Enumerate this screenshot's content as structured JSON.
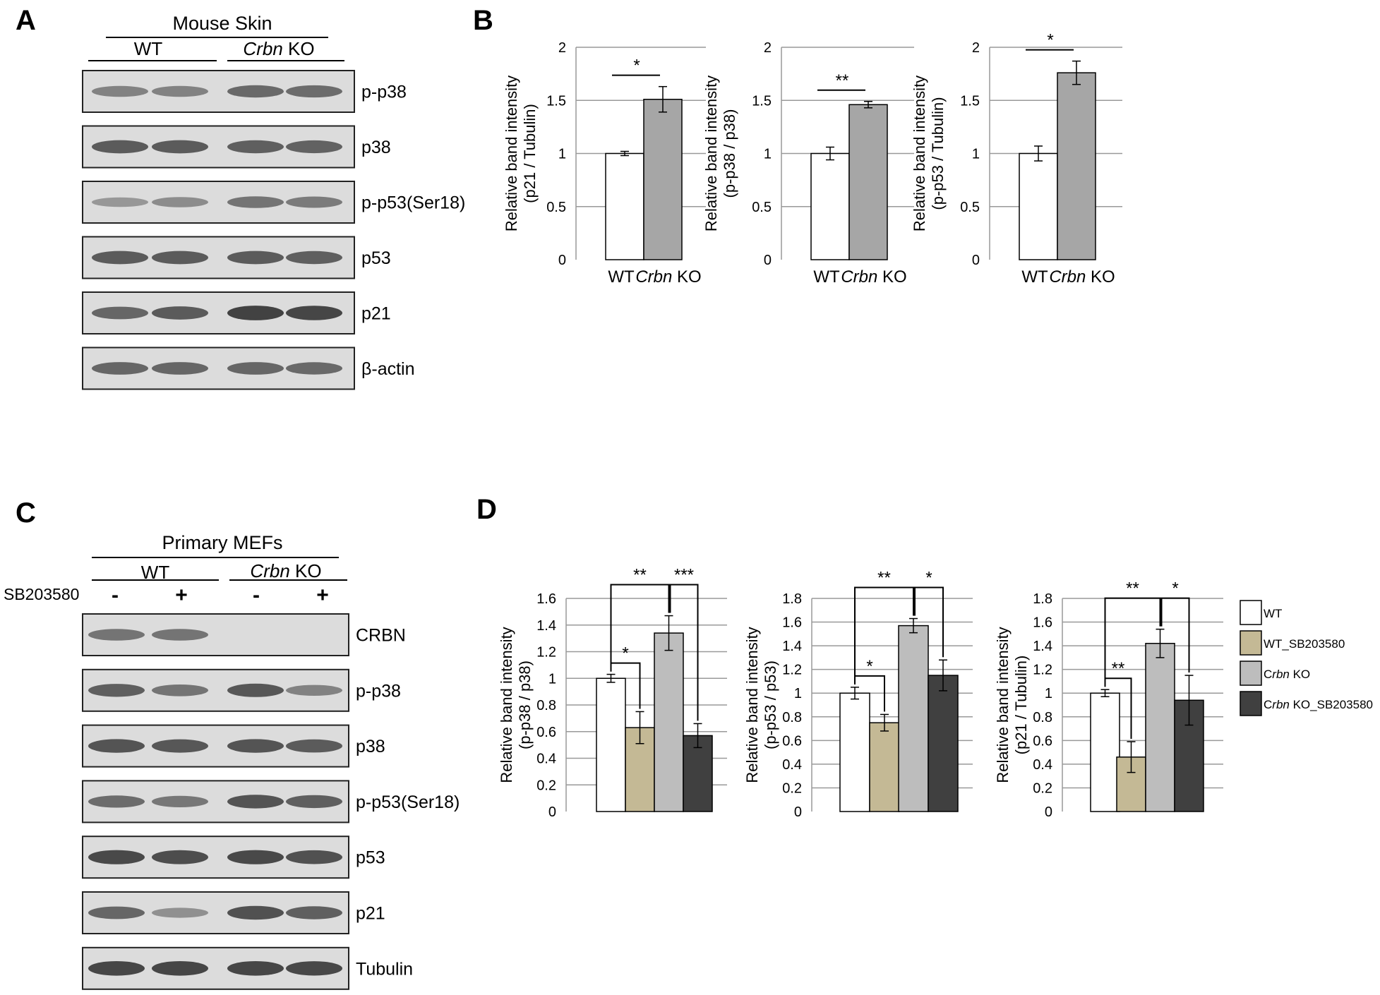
{
  "panels": {
    "A": {
      "letter": "A",
      "title": "Mouse Skin",
      "groups": [
        {
          "label": "WT",
          "italic": "",
          "suffix": ""
        },
        {
          "label": "",
          "italic": "Crbn",
          "suffix": " KO"
        }
      ],
      "blots": [
        {
          "label": "p-p38",
          "intensity": [
            0.45,
            0.45,
            0.62,
            0.6
          ]
        },
        {
          "label": "p38",
          "intensity": [
            0.72,
            0.72,
            0.7,
            0.68
          ]
        },
        {
          "label": "p-p53(Ser18)",
          "intensity": [
            0.3,
            0.38,
            0.55,
            0.5
          ]
        },
        {
          "label": "p53",
          "intensity": [
            0.72,
            0.72,
            0.72,
            0.7
          ]
        },
        {
          "label": "p21",
          "intensity": [
            0.65,
            0.72,
            0.9,
            0.88
          ]
        },
        {
          "label": "β-actin",
          "intensity": [
            0.65,
            0.65,
            0.65,
            0.62
          ]
        }
      ]
    },
    "B": {
      "letter": "B"
    },
    "C": {
      "letter": "C",
      "title": "Primary MEFs",
      "treatment_label": "SB203580",
      "treatment_signs": [
        "-",
        "+",
        "-",
        "+"
      ],
      "groups": [
        {
          "label": "WT",
          "italic": "",
          "suffix": ""
        },
        {
          "label": "",
          "italic": "Crbn",
          "suffix": " KO"
        }
      ],
      "blots": [
        {
          "label": "CRBN",
          "intensity": [
            0.55,
            0.55,
            0.0,
            0.0
          ]
        },
        {
          "label": "p-p38",
          "intensity": [
            0.7,
            0.55,
            0.75,
            0.45
          ]
        },
        {
          "label": "p38",
          "intensity": [
            0.78,
            0.75,
            0.78,
            0.72
          ]
        },
        {
          "label": "p-p53(Ser18)",
          "intensity": [
            0.6,
            0.52,
            0.78,
            0.7
          ]
        },
        {
          "label": "p53",
          "intensity": [
            0.85,
            0.82,
            0.85,
            0.8
          ]
        },
        {
          "label": "p21",
          "intensity": [
            0.65,
            0.35,
            0.8,
            0.7
          ]
        },
        {
          "label": "Tubulin",
          "intensity": [
            0.88,
            0.88,
            0.88,
            0.86
          ]
        }
      ]
    },
    "D": {
      "letter": "D",
      "legend": [
        {
          "name": "WT",
          "italic": "",
          "rest": "WT",
          "color": "#ffffff"
        },
        {
          "name": "WT_SB203580",
          "italic": "",
          "rest": "WT_SB203580",
          "color": "#c4b995"
        },
        {
          "name": "Crbn KO",
          "italic": "Crbn",
          "rest": " KO",
          "color": "#bdbdbd"
        },
        {
          "name": "Crbn KO_SB203580",
          "italic": "Crbn",
          "rest": " KO_SB203580",
          "color": "#404040"
        }
      ]
    }
  },
  "chart_data": [
    {
      "type": "bar",
      "panel": "B",
      "ylabel_lines": [
        "Relative band intensity",
        "(p21 / Tubulin)"
      ],
      "categories": [
        "WT",
        "Crbn KO"
      ],
      "values": [
        1.0,
        1.51
      ],
      "errors": [
        0.02,
        0.12
      ],
      "colors": [
        "#ffffff",
        "#a6a6a6"
      ],
      "ylim": [
        0,
        2
      ],
      "ticks": [
        0,
        0.5,
        1,
        1.5,
        2
      ],
      "tick_labels": [
        "0",
        "0.5",
        "1",
        "1.5",
        "2"
      ],
      "xlabels": [
        {
          "plain": "WT",
          "italic": ""
        },
        {
          "plain": " KO",
          "italic": "Crbn"
        }
      ],
      "sig": [
        {
          "from": 0,
          "to": 1,
          "text": "*",
          "kind": "line"
        }
      ]
    },
    {
      "type": "bar",
      "panel": "B",
      "ylabel_lines": [
        "Relative band intensity",
        "(p-p38 / p38)"
      ],
      "categories": [
        "WT",
        "Crbn KO"
      ],
      "values": [
        1.0,
        1.46
      ],
      "errors": [
        0.06,
        0.03
      ],
      "colors": [
        "#ffffff",
        "#a6a6a6"
      ],
      "ylim": [
        0,
        2
      ],
      "ticks": [
        0,
        0.5,
        1,
        1.5,
        2
      ],
      "tick_labels": [
        "0",
        "0.5",
        "1",
        "1.5",
        "2"
      ],
      "xlabels": [
        {
          "plain": "WT",
          "italic": ""
        },
        {
          "plain": " KO",
          "italic": "Crbn"
        }
      ],
      "sig": [
        {
          "from": 0,
          "to": 1,
          "text": "**",
          "kind": "line"
        }
      ]
    },
    {
      "type": "bar",
      "panel": "B",
      "ylabel_lines": [
        "Relative band intensity",
        "(p-p53 / Tubulin)"
      ],
      "categories": [
        "WT",
        "Crbn KO"
      ],
      "values": [
        1.0,
        1.76
      ],
      "errors": [
        0.07,
        0.11
      ],
      "colors": [
        "#ffffff",
        "#a6a6a6"
      ],
      "ylim": [
        0,
        2
      ],
      "ticks": [
        0,
        0.5,
        1,
        1.5,
        2
      ],
      "tick_labels": [
        "0",
        "0.5",
        "1",
        "1.5",
        "2"
      ],
      "xlabels": [
        {
          "plain": "WT",
          "italic": ""
        },
        {
          "plain": " KO",
          "italic": "Crbn"
        }
      ],
      "sig": [
        {
          "from": 0,
          "to": 1,
          "text": "*",
          "kind": "line"
        }
      ]
    },
    {
      "type": "bar",
      "panel": "D",
      "ylabel_lines": [
        "Relative band intensity",
        "(p-p38 / p38)"
      ],
      "categories": [
        "WT",
        "WT_SB203580",
        "Crbn KO",
        "Crbn KO_SB203580"
      ],
      "values": [
        1.0,
        0.63,
        1.34,
        0.57
      ],
      "errors": [
        0.03,
        0.12,
        0.13,
        0.09
      ],
      "colors": [
        "#ffffff",
        "#c4b995",
        "#bdbdbd",
        "#404040"
      ],
      "ylim": [
        0,
        1.6
      ],
      "ticks": [
        0,
        0.2,
        0.4,
        0.6,
        0.8,
        1,
        1.2,
        1.4,
        1.6
      ],
      "tick_labels": [
        "0",
        "0.2",
        "0.4",
        "0.6",
        "0.8",
        "1",
        "1.2",
        "1.4",
        "1.6"
      ],
      "sig": [
        {
          "from": 0,
          "to": 1,
          "text": "*",
          "kind": "bracket"
        },
        {
          "from": 0,
          "to": 2,
          "text": "**",
          "kind": "bracket"
        },
        {
          "from": 2,
          "to": 3,
          "text": "***",
          "kind": "bracket"
        }
      ]
    },
    {
      "type": "bar",
      "panel": "D",
      "ylabel_lines": [
        "Relative band intensity",
        "(p-p53 / p53)"
      ],
      "categories": [
        "WT",
        "WT_SB203580",
        "Crbn KO",
        "Crbn KO_SB203580"
      ],
      "values": [
        1.0,
        0.75,
        1.57,
        1.15
      ],
      "errors": [
        0.05,
        0.07,
        0.06,
        0.13
      ],
      "colors": [
        "#ffffff",
        "#c4b995",
        "#bdbdbd",
        "#404040"
      ],
      "ylim": [
        0,
        1.8
      ],
      "ticks": [
        0,
        0.2,
        0.4,
        0.6,
        0.8,
        1,
        1.2,
        1.4,
        1.6,
        1.8
      ],
      "tick_labels": [
        "0",
        "0.2",
        "0.4",
        "0.6",
        "0.8",
        "1",
        "1.2",
        "1.4",
        "1.6",
        "1.8"
      ],
      "sig": [
        {
          "from": 0,
          "to": 1,
          "text": "*",
          "kind": "bracket"
        },
        {
          "from": 0,
          "to": 2,
          "text": "**",
          "kind": "bracket"
        },
        {
          "from": 2,
          "to": 3,
          "text": "*",
          "kind": "bracket"
        }
      ]
    },
    {
      "type": "bar",
      "panel": "D",
      "ylabel_lines": [
        "Relative band intensity",
        "(p21 / Tubulin)"
      ],
      "categories": [
        "WT",
        "WT_SB203580",
        "Crbn KO",
        "Crbn KO_SB203580"
      ],
      "values": [
        1.0,
        0.46,
        1.42,
        0.94
      ],
      "errors": [
        0.03,
        0.13,
        0.12,
        0.21
      ],
      "colors": [
        "#ffffff",
        "#c4b995",
        "#bdbdbd",
        "#404040"
      ],
      "ylim": [
        0,
        1.8
      ],
      "ticks": [
        0,
        0.2,
        0.4,
        0.6,
        0.8,
        1,
        1.2,
        1.4,
        1.6,
        1.8
      ],
      "tick_labels": [
        "0",
        "0.2",
        "0.4",
        "0.6",
        "0.8",
        "1",
        "1.2",
        "1.4",
        "1.6",
        "1.8"
      ],
      "sig": [
        {
          "from": 0,
          "to": 1,
          "text": "**",
          "kind": "bracket"
        },
        {
          "from": 0,
          "to": 2,
          "text": "**",
          "kind": "bracket"
        },
        {
          "from": 2,
          "to": 3,
          "text": "*",
          "kind": "bracket"
        }
      ]
    }
  ]
}
